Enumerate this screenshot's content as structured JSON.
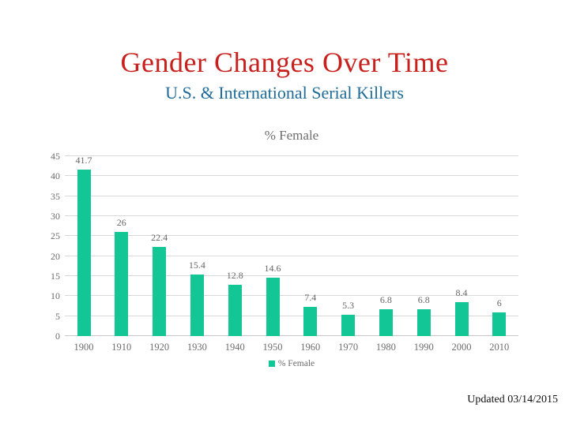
{
  "slide": {
    "title": "Gender Changes Over Time",
    "subtitle": "U.S. & International Serial Killers",
    "footer": "Updated 03/14/2015"
  },
  "chart_data": {
    "type": "bar",
    "title": "% Female",
    "categories": [
      "1900",
      "1910",
      "1920",
      "1930",
      "1940",
      "1950",
      "1960",
      "1970",
      "1980",
      "1990",
      "2000",
      "2010"
    ],
    "values": [
      41.7,
      26,
      22.4,
      15.4,
      12.8,
      14.6,
      7.4,
      5.3,
      6.8,
      6.8,
      8.4,
      6
    ],
    "value_labels": [
      "41.7",
      "26",
      "22.4",
      "15.4",
      "12.8",
      "14.6",
      "7.4",
      "5.3",
      "6.8",
      "6.8",
      "8.4",
      "6"
    ],
    "ylim": [
      0,
      45
    ],
    "ytick_step": 5,
    "grid": true,
    "legend_label": "% Female",
    "legend_position": "bottom",
    "colors": {
      "bar": "#12c795",
      "grid": "#d9d9d9",
      "axis_text": "#6e6e6e",
      "title_text": "#6e6e6e"
    }
  }
}
